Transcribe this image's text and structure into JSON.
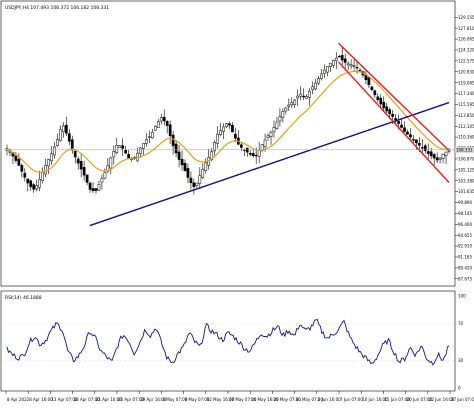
{
  "symbol_header": "USDJPY,H4  107.493 108.372 106.182 108.331",
  "rsi_header": "RSI(14) 46.1888",
  "colors": {
    "background": "#ffffff",
    "candle": "#000000",
    "moving_average": "#e0a020",
    "trend_support": "#14147a",
    "channel": "#e02020",
    "rsi_line": "#14147a",
    "grid": "#d8d8d8",
    "current_price_line": "#a0a0a0"
  },
  "chart_data": [
    {
      "type": "candlestick",
      "instrument": "USDJPY",
      "timeframe": "H4",
      "title": "USDJPY,H4  107.493 108.372 106.182 108.331",
      "price_axis_ticks": [
        "129.555",
        "127.810",
        "126.065",
        "124.320",
        "122.575",
        "120.830",
        "119.085",
        "117.340",
        "115.595",
        "113.850",
        "112.105",
        "110.360",
        "108.615",
        "106.870",
        "105.125",
        "103.380",
        "101.635",
        "99.890",
        "98.145",
        "96.400",
        "94.655",
        "92.910",
        "91.165",
        "89.420",
        "87.675"
      ],
      "ylim": [
        87.0,
        130.4
      ],
      "current_price": "108.331",
      "time_axis_labels": [
        "8 Apr 2022",
        "8 Apr 16:00",
        "13 Apr 07:00",
        "18 Apr 07:00",
        "21 Apr 16:00",
        "26 Apr 07:00",
        "29 Apr 16:00",
        "4 May 07:00",
        "9 May 07:00",
        "12 May 16:00",
        "17 May 07:00",
        "20 May 16:00",
        "25 May 07:00",
        "30 May 07:00",
        "2 Jun 16:00",
        "7 Jun 07:00",
        "10 Jun 16:00",
        "15 Jun 07:00",
        "20 Jun 07:00",
        "22 Jun 16:00",
        "27 Jun 07:00"
      ],
      "close_path": [
        108.5,
        107.4,
        106.1,
        104.3,
        102.6,
        101.9,
        103.8,
        105.9,
        107.6,
        109.6,
        112.6,
        110.4,
        107.8,
        106.0,
        104.2,
        102.0,
        101.6,
        103.4,
        105.2,
        107.5,
        109.3,
        108.5,
        107.0,
        106.8,
        108.4,
        109.8,
        110.6,
        112.4,
        113.6,
        112.2,
        109.1,
        107.0,
        105.4,
        103.4,
        102.2,
        104.4,
        106.3,
        107.9,
        110.7,
        111.8,
        112.8,
        110.8,
        109.0,
        108.3,
        107.6,
        107.2,
        108.9,
        110.3,
        111.4,
        113.0,
        114.6,
        115.5,
        116.2,
        117.4,
        116.5,
        118.1,
        119.2,
        120.6,
        121.7,
        122.6,
        123.3,
        122.4,
        122.0,
        121.8,
        120.9,
        119.5,
        118.0,
        116.5,
        115.2,
        114.3,
        113.5,
        112.4,
        111.2,
        110.4,
        109.5,
        108.8,
        107.9,
        107.2,
        106.6,
        107.7,
        108.3
      ],
      "moving_average_path": [
        108.3,
        107.9,
        107.3,
        106.5,
        105.6,
        104.9,
        104.7,
        104.9,
        105.4,
        106.3,
        107.6,
        108.3,
        108.5,
        108.0,
        107.3,
        106.4,
        105.5,
        105.0,
        104.9,
        105.3,
        106.0,
        106.6,
        106.9,
        107.0,
        107.1,
        107.5,
        108.0,
        108.7,
        109.5,
        110.1,
        110.1,
        109.6,
        108.8,
        107.8,
        106.8,
        106.4,
        106.4,
        106.8,
        107.6,
        108.6,
        109.4,
        109.8,
        109.7,
        109.3,
        108.8,
        108.3,
        108.2,
        108.5,
        109.0,
        109.8,
        110.8,
        111.8,
        112.7,
        113.7,
        114.4,
        115.3,
        116.3,
        117.3,
        118.3,
        119.2,
        120.0,
        120.5,
        120.8,
        120.9,
        120.8,
        120.4,
        119.7,
        118.9,
        118.0,
        117.0,
        116.0,
        115.0,
        114.0,
        113.0,
        112.0,
        111.1,
        110.2,
        109.4,
        108.7,
        108.4,
        108.3
      ],
      "series": [
        {
          "name": "",
          "kind": "trendline",
          "start": {
            "bar": 15,
            "price": 96.2
          },
          "end": {
            "bar": 80,
            "price": 115.9
          }
        },
        {
          "name": "",
          "kind": "channel_upper",
          "start": {
            "bar": 60,
            "price": 125.4
          },
          "end": {
            "bar": 80,
            "price": 108.2
          }
        },
        {
          "name": "",
          "kind": "channel_lower",
          "start": {
            "bar": 60,
            "price": 122.4
          },
          "end": {
            "bar": 80,
            "price": 103.1
          }
        }
      ],
      "grid": true,
      "legend": "none"
    },
    {
      "type": "line",
      "title": "RSI(14) 46.1888",
      "ylim": [
        0,
        100
      ],
      "y_ticks": [
        "100",
        "70",
        "30",
        "0"
      ],
      "current_value": 46.1888,
      "values": [
        42,
        36,
        33,
        35,
        49,
        57,
        47,
        52,
        62,
        70,
        64,
        40,
        30,
        35,
        46,
        62,
        54,
        40,
        34,
        28,
        46,
        58,
        52,
        38,
        49,
        64,
        57,
        66,
        48,
        32,
        28,
        38,
        45,
        60,
        50,
        44,
        68,
        62,
        58,
        52,
        60,
        56,
        50,
        43,
        40,
        50,
        60,
        56,
        62,
        67,
        57,
        63,
        56,
        70,
        62,
        66,
        74,
        61,
        54,
        58,
        64,
        72,
        56,
        46,
        38,
        32,
        26,
        34,
        46,
        52,
        40,
        28,
        32,
        44,
        36,
        46,
        32,
        27,
        36,
        30,
        46
      ]
    }
  ]
}
